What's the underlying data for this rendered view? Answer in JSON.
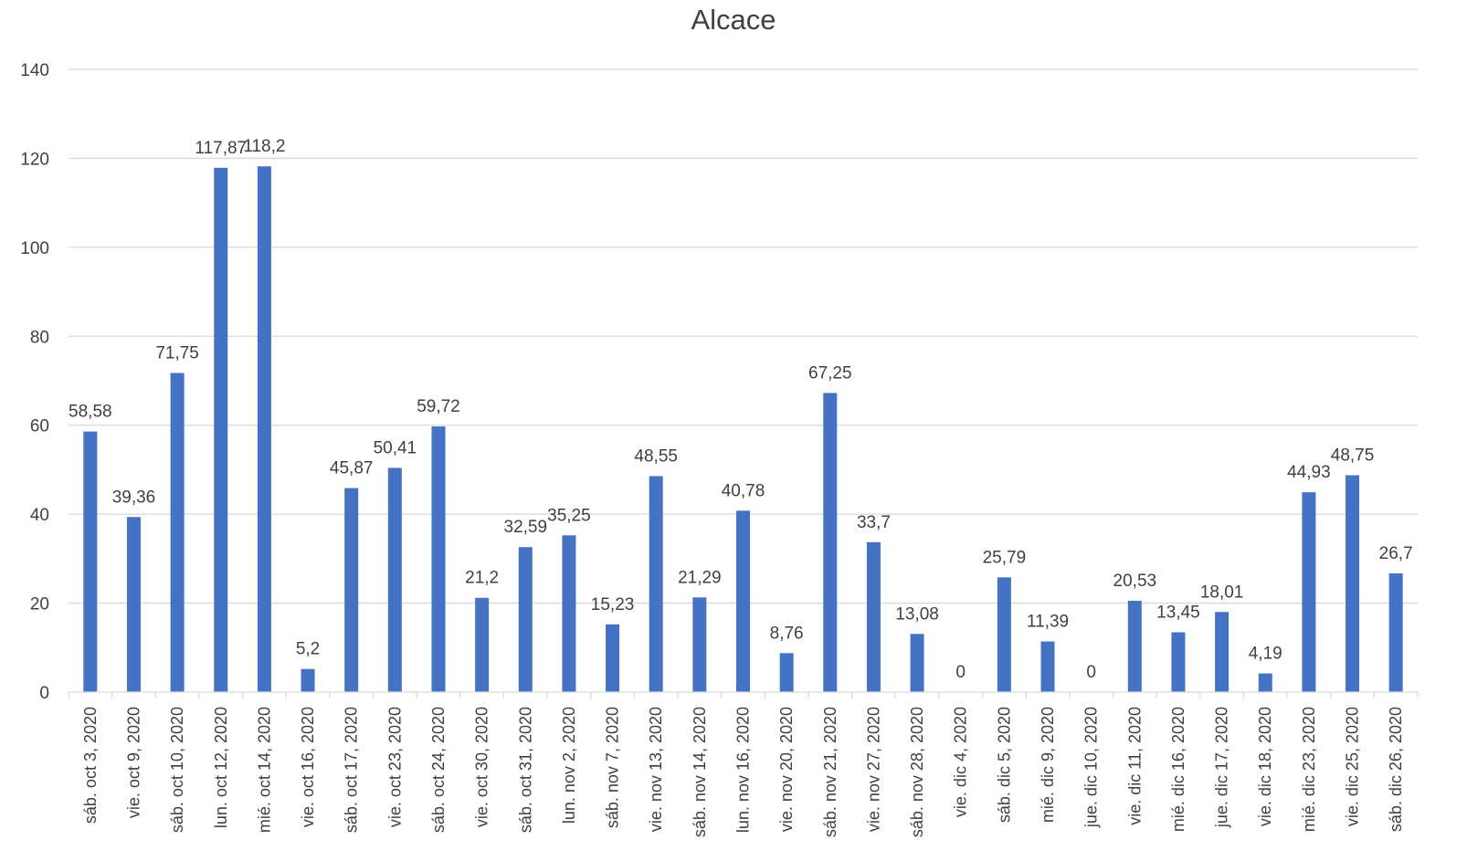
{
  "chart_data": {
    "type": "bar",
    "title": "Alcace",
    "xlabel": "",
    "ylabel": "",
    "ylim": [
      0,
      140
    ],
    "yticks": [
      0,
      20,
      40,
      60,
      80,
      100,
      120,
      140
    ],
    "grid": true,
    "legend": "none",
    "bar_color": "#4472C4",
    "grid_color": "#D9D9D9",
    "categories": [
      "sáb. oct 3, 2020",
      "vie. oct 9, 2020",
      "sáb. oct 10, 2020",
      "lun. oct 12, 2020",
      "mié. oct 14, 2020",
      "vie. oct 16, 2020",
      "sáb. oct 17, 2020",
      "vie. oct 23, 2020",
      "sáb. oct 24, 2020",
      "vie. oct 30, 2020",
      "sáb. oct 31, 2020",
      "lun. nov 2, 2020",
      "sáb. nov 7, 2020",
      "vie. nov 13, 2020",
      "sáb. nov 14, 2020",
      "lun. nov 16, 2020",
      "vie. nov 20, 2020",
      "sáb. nov 21, 2020",
      "vie. nov 27, 2020",
      "sáb. nov 28, 2020",
      "vie. dic 4, 2020",
      "sáb. dic 5, 2020",
      "mié. dic 9, 2020",
      "jue. dic 10, 2020",
      "vie. dic 11, 2020",
      "mié. dic 16, 2020",
      "jue. dic 17, 2020",
      "vie. dic 18, 2020",
      "mié. dic 23, 2020",
      "vie. dic 25, 2020",
      "sáb. dic 26, 2020"
    ],
    "values": [
      58.58,
      39.36,
      71.75,
      117.87,
      118.2,
      5.2,
      45.87,
      50.41,
      59.72,
      21.2,
      32.59,
      35.25,
      15.23,
      48.55,
      21.29,
      40.78,
      8.76,
      67.25,
      33.7,
      13.08,
      0,
      25.79,
      11.39,
      0,
      20.53,
      13.45,
      18.01,
      4.19,
      44.93,
      48.75,
      26.7
    ],
    "value_labels": [
      "58,58",
      "39,36",
      "71,75",
      "117,87",
      "118,2",
      "5,2",
      "45,87",
      "50,41",
      "59,72",
      "21,2",
      "32,59",
      "35,25",
      "15,23",
      "48,55",
      "21,29",
      "40,78",
      "8,76",
      "67,25",
      "33,7",
      "13,08",
      "0",
      "25,79",
      "11,39",
      "0",
      "20,53",
      "13,45",
      "18,01",
      "4,19",
      "44,93",
      "48,75",
      "26,7"
    ]
  }
}
